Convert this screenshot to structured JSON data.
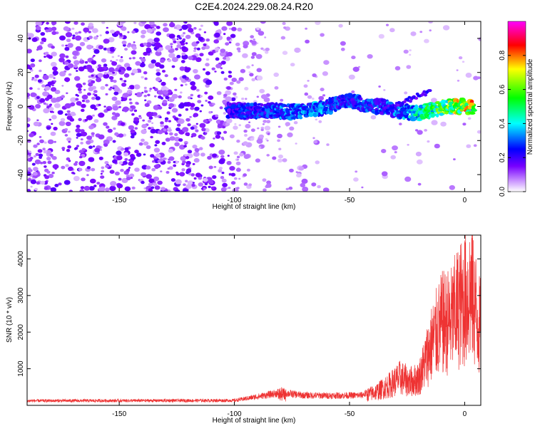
{
  "title": "C2E4.2024.229.08.24.R20",
  "chart_data": [
    {
      "type": "heatmap",
      "description_role": "spectrogram",
      "xlabel": "Height of straight line (km)",
      "ylabel": "Frequency (Hz)",
      "xlim": [
        -190,
        7
      ],
      "ylim": [
        -50,
        50
      ],
      "xticks": [
        -150,
        -100,
        -50,
        0
      ],
      "yticks": [
        -40,
        -20,
        0,
        20,
        40
      ],
      "colorbar": {
        "label": "Normalized spectral amplitude",
        "range": [
          0,
          1
        ],
        "ticks": [
          0.0,
          0.2,
          0.4,
          0.6,
          0.8
        ],
        "colors": [
          "#ffffff",
          "#cc99ff",
          "#7700ff",
          "#0000ff",
          "#00ffff",
          "#00ff00",
          "#ffff00",
          "#ff0000",
          "#ff00ff"
        ]
      },
      "signal_track": [
        {
          "x": -103,
          "y": -2,
          "a": 0.25
        },
        {
          "x": -95,
          "y": -3,
          "a": 0.28
        },
        {
          "x": -85,
          "y": -2,
          "a": 0.3
        },
        {
          "x": -78,
          "y": -3,
          "a": 0.35
        },
        {
          "x": -70,
          "y": -3,
          "a": 0.35
        },
        {
          "x": -62,
          "y": -1,
          "a": 0.35
        },
        {
          "x": -55,
          "y": 2,
          "a": 0.3
        },
        {
          "x": -48,
          "y": 3,
          "a": 0.3
        },
        {
          "x": -42,
          "y": 0,
          "a": 0.3
        },
        {
          "x": -35,
          "y": 0,
          "a": 0.3
        },
        {
          "x": -28,
          "y": -3,
          "a": 0.35
        },
        {
          "x": -20,
          "y": -4,
          "a": 0.45
        },
        {
          "x": -14,
          "y": -2,
          "a": 0.55
        },
        {
          "x": -8,
          "y": 0,
          "a": 0.65
        },
        {
          "x": -2,
          "y": 0,
          "a": 0.7
        },
        {
          "x": 4,
          "y": 0,
          "a": 0.75
        }
      ]
    },
    {
      "type": "line",
      "xlabel": "Height of straight line (km)",
      "ylabel": "SNR (10 * v/v)",
      "xlim": [
        -190,
        7
      ],
      "ylim": [
        0,
        4650
      ],
      "xticks": [
        -150,
        -100,
        -50,
        0
      ],
      "yticks": [
        1000,
        2000,
        3000,
        4000
      ],
      "color": "#ee3333",
      "envelope": [
        {
          "x": -190,
          "y": 150
        },
        {
          "x": -100,
          "y": 160
        },
        {
          "x": -85,
          "y": 350
        },
        {
          "x": -80,
          "y": 420
        },
        {
          "x": -70,
          "y": 330
        },
        {
          "x": -60,
          "y": 320
        },
        {
          "x": -45,
          "y": 330
        },
        {
          "x": -38,
          "y": 520
        },
        {
          "x": -32,
          "y": 800
        },
        {
          "x": -28,
          "y": 1050
        },
        {
          "x": -24,
          "y": 900
        },
        {
          "x": -20,
          "y": 1000
        },
        {
          "x": -17,
          "y": 1700
        },
        {
          "x": -15,
          "y": 2200
        },
        {
          "x": -13,
          "y": 2600
        },
        {
          "x": -10,
          "y": 3100
        },
        {
          "x": -6,
          "y": 3200
        },
        {
          "x": -3,
          "y": 3700
        },
        {
          "x": 0,
          "y": 4000
        },
        {
          "x": 3,
          "y": 4400
        },
        {
          "x": 6,
          "y": 3100
        },
        {
          "x": 7,
          "y": 2900
        }
      ]
    }
  ]
}
